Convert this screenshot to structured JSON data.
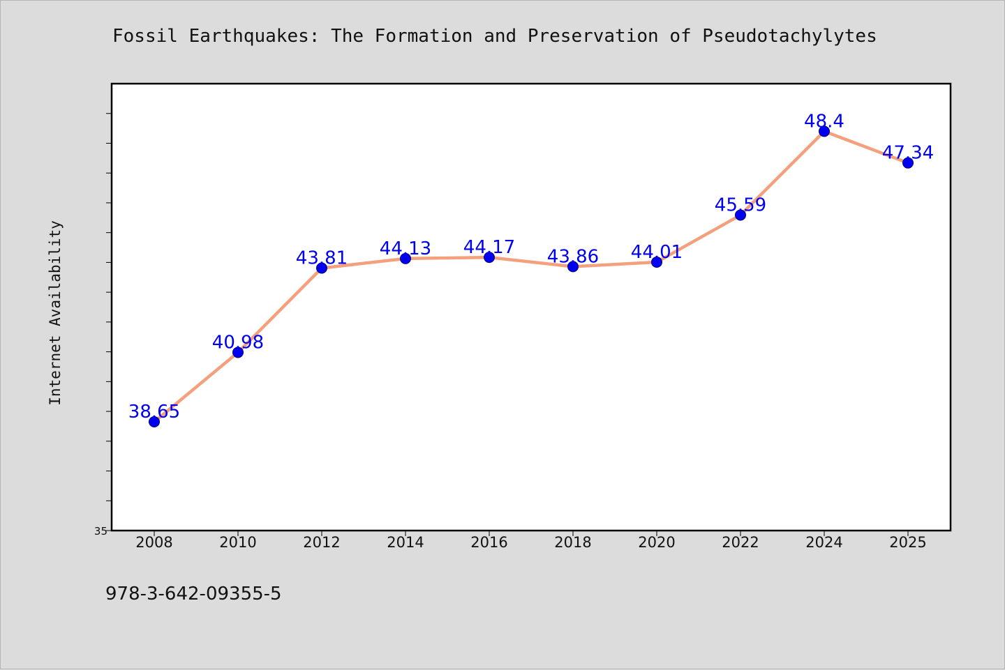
{
  "title": "Fossil Earthquakes: The Formation and Preservation of Pseudotachylytes",
  "footer_text": "978-3-642-09355-5",
  "colors": {
    "line": "#f4a07c",
    "marker": "#0000ee",
    "label": "#0000ee",
    "plot_bg": "#ffffff",
    "page_bg": "#dcdcdc"
  },
  "chart_data": {
    "type": "line",
    "title": "Fossil Earthquakes: The Formation and Preservation of Pseudotachylytes",
    "xlabel": "",
    "ylabel": "Internet Availability",
    "categories": [
      "2008",
      "2010",
      "2012",
      "2014",
      "2016",
      "2018",
      "2020",
      "2022",
      "2024",
      "2025"
    ],
    "series": [
      {
        "values": [
          38.65,
          40.98,
          43.81,
          44.13,
          44.17,
          43.86,
          44.01,
          45.59,
          48.4,
          47.34
        ],
        "labels": [
          "38.65",
          "40.98",
          "43.81",
          "44.13",
          "44.17",
          "43.86",
          "44.01",
          "45.59",
          "48.4",
          "47.34"
        ]
      }
    ],
    "ylim": [
      35,
      50
    ],
    "y_tick_labels": [
      "35"
    ],
    "grid": false,
    "legend": "none"
  }
}
